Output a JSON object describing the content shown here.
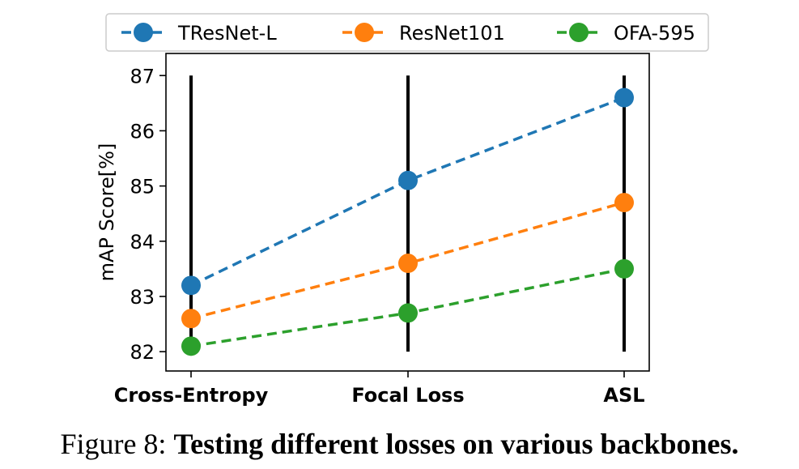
{
  "chart_data": {
    "type": "line",
    "categories": [
      "Cross-Entropy",
      "Focal Loss",
      "ASL"
    ],
    "series": [
      {
        "name": "TResNet-L",
        "values": [
          83.2,
          85.1,
          86.6
        ],
        "color": "#1f77b4"
      },
      {
        "name": "ResNet101",
        "values": [
          82.6,
          83.6,
          84.7
        ],
        "color": "#ff7f0e"
      },
      {
        "name": "OFA-595",
        "values": [
          82.1,
          82.7,
          83.5
        ],
        "color": "#2ca02c"
      }
    ],
    "ylabel": "mAP Score[%]",
    "xlabel": "",
    "ylim": [
      81.65,
      87.4
    ],
    "yticks": [
      82,
      83,
      84,
      85,
      86,
      87
    ],
    "ytick_labels": [
      "82",
      "83",
      "84",
      "85",
      "86",
      "87"
    ],
    "vertical_lines": {
      "from": 82,
      "to": 87,
      "color": "#000000"
    },
    "line_style": "dashed",
    "legend_position": "top-center",
    "grid": false
  },
  "caption": {
    "prefix": "Figure 8: ",
    "title": "Testing different losses on various backbones."
  }
}
